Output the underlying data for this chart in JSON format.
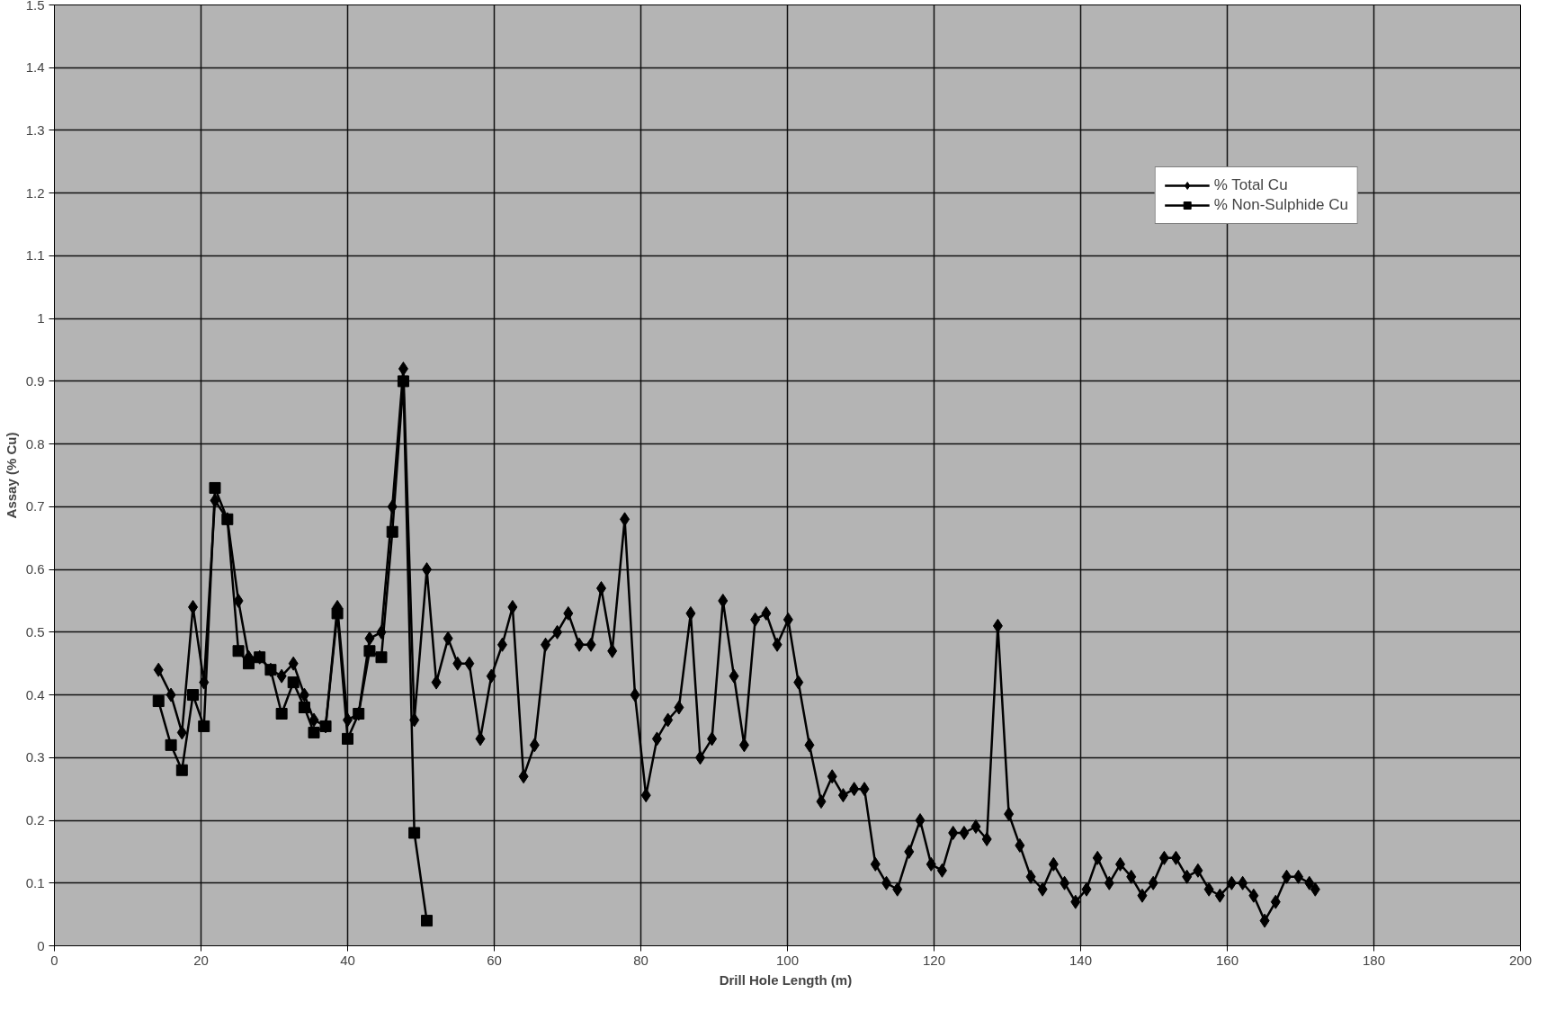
{
  "chart_data": {
    "type": "line",
    "xlabel": "Drill Hole Length  (m)",
    "ylabel": "Assay (% Cu)",
    "xlim": [
      0,
      200
    ],
    "ylim": [
      0,
      1.5
    ],
    "xticks": [
      0,
      20,
      40,
      60,
      80,
      100,
      120,
      140,
      160,
      180,
      200
    ],
    "yticks": [
      0,
      0.1,
      0.2,
      0.3,
      0.4,
      0.5,
      0.6,
      0.7,
      0.8,
      0.9,
      1,
      1.1,
      1.2,
      1.3,
      1.4,
      1.5
    ],
    "grid": true,
    "legend": "top right",
    "line_style": "solid",
    "series": [
      {
        "name": "% Total Cu",
        "color": "#000000",
        "marker": "diamond",
        "x": [
          14.2,
          15.9,
          17.4,
          18.9,
          20.4,
          21.9,
          23.6,
          25.1,
          26.5,
          28.0,
          29.5,
          31.0,
          32.6,
          34.1,
          35.4,
          37.0,
          38.6,
          40.0,
          41.5,
          43.0,
          44.6,
          46.1,
          47.6,
          49.1,
          50.8,
          52.1,
          53.7,
          55.0,
          56.6,
          58.1,
          59.6,
          61.1,
          62.5,
          64.0,
          65.5,
          67.0,
          68.6,
          70.1,
          71.6,
          73.2,
          74.6,
          76.1,
          77.8,
          79.2,
          80.7,
          82.2,
          83.7,
          85.2,
          86.8,
          88.1,
          89.7,
          91.2,
          92.7,
          94.1,
          95.6,
          97.1,
          98.6,
          100.1,
          101.5,
          103.0,
          104.6,
          106.1,
          107.6,
          109.1,
          110.5,
          112.0,
          113.5,
          115.0,
          116.6,
          118.1,
          119.6,
          121.1,
          122.6,
          124.1,
          125.7,
          127.2,
          128.7,
          130.2,
          131.7,
          133.2,
          134.8,
          136.3,
          137.8,
          139.3,
          140.8,
          142.3,
          143.9,
          145.4,
          146.9,
          148.4,
          149.9,
          151.4,
          153.0,
          154.5,
          156.0,
          157.5,
          159.0,
          160.6,
          162.1,
          163.6,
          165.1,
          166.6,
          168.1,
          169.7,
          171.2,
          172.0
        ],
        "values": [
          0.44,
          0.4,
          0.34,
          0.54,
          0.42,
          0.71,
          0.68,
          0.55,
          0.46,
          0.46,
          0.44,
          0.43,
          0.45,
          0.4,
          0.36,
          0.35,
          0.54,
          0.36,
          0.37,
          0.49,
          0.5,
          0.7,
          0.92,
          0.36,
          0.6,
          0.42,
          0.49,
          0.45,
          0.45,
          0.33,
          0.43,
          0.48,
          0.54,
          0.27,
          0.32,
          0.48,
          0.5,
          0.53,
          0.48,
          0.48,
          0.57,
          0.47,
          0.68,
          0.4,
          0.24,
          0.33,
          0.36,
          0.38,
          0.53,
          0.3,
          0.33,
          0.55,
          0.43,
          0.32,
          0.52,
          0.53,
          0.48,
          0.52,
          0.42,
          0.32,
          0.23,
          0.27,
          0.24,
          0.25,
          0.25,
          0.13,
          0.1,
          0.09,
          0.15,
          0.2,
          0.13,
          0.12,
          0.18,
          0.18,
          0.19,
          0.17,
          0.51,
          0.21,
          0.16,
          0.11,
          0.09,
          0.13,
          0.1,
          0.07,
          0.09,
          0.14,
          0.1,
          0.13,
          0.11,
          0.08,
          0.1,
          0.14,
          0.14,
          0.11,
          0.12,
          0.09,
          0.08,
          0.1,
          0.1,
          0.08,
          0.04,
          0.07,
          0.11,
          0.11,
          0.1,
          0.09
        ]
      },
      {
        "name": "% Non-Sulphide Cu",
        "color": "#000000",
        "marker": "square",
        "x": [
          14.2,
          15.9,
          17.4,
          18.9,
          20.4,
          21.9,
          23.6,
          25.1,
          26.5,
          28.0,
          29.5,
          31.0,
          32.6,
          34.1,
          35.4,
          37.0,
          38.6,
          40.0,
          41.5,
          43.0,
          44.6,
          46.1,
          47.6,
          49.1,
          50.8
        ],
        "values": [
          0.39,
          0.32,
          0.28,
          0.4,
          0.35,
          0.73,
          0.68,
          0.47,
          0.45,
          0.46,
          0.44,
          0.37,
          0.42,
          0.38,
          0.34,
          0.35,
          0.53,
          0.33,
          0.37,
          0.47,
          0.46,
          0.66,
          0.9,
          0.18,
          0.04
        ]
      }
    ]
  }
}
